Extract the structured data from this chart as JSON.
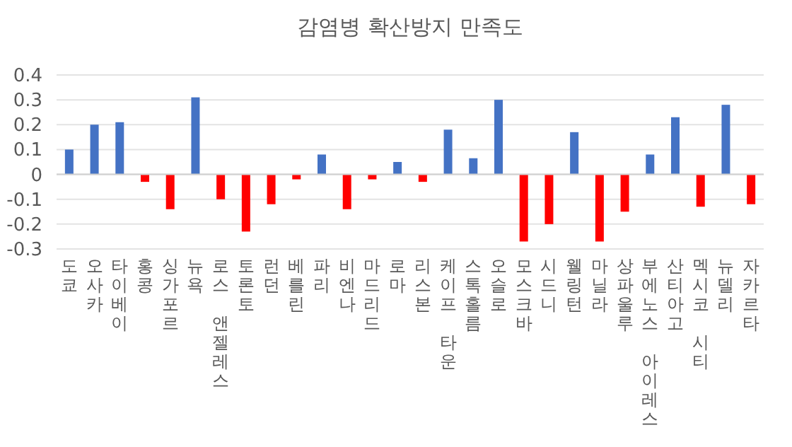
{
  "chart_data": {
    "type": "bar",
    "title": "감염병 확산방지 만족도",
    "categories": [
      "도쿄",
      "오사카",
      "타이베이",
      "홍콩",
      "싱가포르",
      "뉴욕",
      "로스 앤젤레스",
      "토론토",
      "런던",
      "베를린",
      "파리",
      "비엔나",
      "마드리드",
      "로마",
      "리스본",
      "케이프 타운",
      "스톡홀름",
      "오슬로",
      "모스크바",
      "시드니",
      "웰링턴",
      "마닐라",
      "상파울루",
      "부에노스 아이레스",
      "산티아고",
      "멕시코 시티",
      "뉴델리",
      "자카르타"
    ],
    "values": [
      0.1,
      0.2,
      0.21,
      -0.03,
      -0.14,
      0.31,
      -0.1,
      -0.23,
      -0.12,
      -0.02,
      0.08,
      -0.14,
      -0.02,
      0.05,
      -0.03,
      0.18,
      0.065,
      0.3,
      -0.27,
      -0.2,
      0.17,
      -0.27,
      -0.15,
      0.08,
      0.23,
      -0.13,
      0.28,
      -0.12
    ],
    "colors": [
      "#4472c4",
      "#4472c4",
      "#4472c4",
      "#ff0000",
      "#ff0000",
      "#4472c4",
      "#ff0000",
      "#ff0000",
      "#ff0000",
      "#ff0000",
      "#4472c4",
      "#ff0000",
      "#ff0000",
      "#4472c4",
      "#ff0000",
      "#4472c4",
      "#4472c4",
      "#4472c4",
      "#ff0000",
      "#ff0000",
      "#4472c4",
      "#ff0000",
      "#ff0000",
      "#4472c4",
      "#4472c4",
      "#ff0000",
      "#4472c4",
      "#ff0000"
    ],
    "ylim": [
      -0.3,
      0.4
    ],
    "yticks": [
      -0.3,
      -0.2,
      -0.1,
      0,
      0.1,
      0.2,
      0.3,
      0.4
    ],
    "grid": "y"
  }
}
